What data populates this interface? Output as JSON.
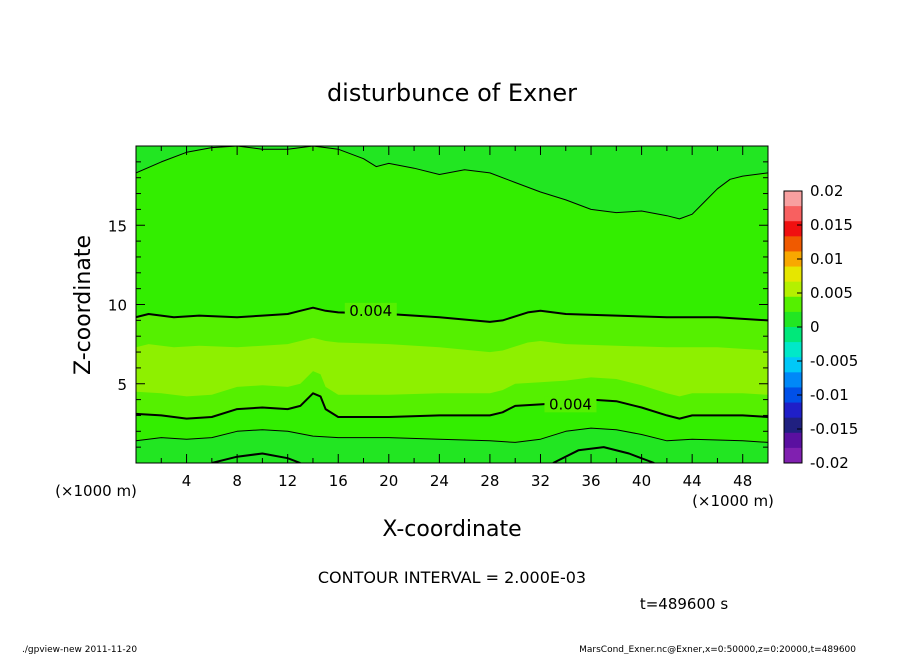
{
  "chart_data": {
    "type": "contour",
    "title": "disturbunce of Exner",
    "xlabel": "X-coordinate",
    "ylabel": "Z-coordinate",
    "x_unit_left": "(×1000 m)",
    "x_unit_right": "(×1000 m)",
    "xlim": [
      0,
      50
    ],
    "ylim": [
      0,
      20
    ],
    "x_ticks": [
      4,
      8,
      12,
      16,
      20,
      24,
      28,
      32,
      36,
      40,
      44,
      48
    ],
    "y_ticks": [
      5,
      10,
      15
    ],
    "contour_interval_text": "CONTOUR INTERVAL = 2.000E-03",
    "time_text": "t=489600 s",
    "contour_labels": [
      {
        "text": "0.004",
        "x": 16.2,
        "z": 9.6
      },
      {
        "text": "0.004",
        "x": 32.0,
        "z": 3.7
      }
    ],
    "colorbar": {
      "min": -0.02,
      "max": 0.02,
      "tick_labels": [
        "0.02",
        "0.015",
        "0.01",
        "0.005",
        "0",
        "-0.005",
        "-0.01",
        "-0.015",
        "-0.02"
      ],
      "tick_values": [
        0.02,
        0.015,
        0.01,
        0.005,
        0,
        -0.005,
        -0.01,
        -0.015,
        -0.02
      ],
      "colors": [
        "#f8a0a0",
        "#f86060",
        "#f01010",
        "#f05a00",
        "#f8a800",
        "#e6e600",
        "#b4f000",
        "#55f000",
        "#22e622",
        "#00e87a",
        "#00e8c8",
        "#00c8f8",
        "#0088f8",
        "#0050e8",
        "#1f1fc8",
        "#202080",
        "#5a10a0",
        "#8020b0"
      ]
    },
    "band_colors": {
      "band_0.006_0.008": "#8ef000",
      "band_0.004_0.006": "#55f000",
      "band_0.002_0.004": "#33ee00",
      "band_0_0.002": "#22e622"
    },
    "contour_lines": [
      {
        "level": 0.002,
        "width": 1,
        "points": [
          [
            0,
            18.3
          ],
          [
            2,
            19.0
          ],
          [
            4,
            19.6
          ],
          [
            6,
            19.9
          ],
          [
            8,
            20.0
          ],
          [
            10,
            19.8
          ],
          [
            12,
            19.8
          ],
          [
            14,
            20.0
          ],
          [
            16,
            19.8
          ],
          [
            18,
            19.2
          ],
          [
            19,
            18.7
          ],
          [
            20,
            18.9
          ],
          [
            22,
            18.6
          ],
          [
            24,
            18.2
          ],
          [
            26,
            18.5
          ],
          [
            28,
            18.3
          ],
          [
            30,
            17.7
          ],
          [
            32,
            17.1
          ],
          [
            34,
            16.6
          ],
          [
            36,
            16.0
          ],
          [
            38,
            15.8
          ],
          [
            40,
            15.9
          ],
          [
            42,
            15.6
          ],
          [
            43,
            15.4
          ],
          [
            44,
            15.7
          ],
          [
            45,
            16.5
          ],
          [
            46,
            17.3
          ],
          [
            47,
            17.9
          ],
          [
            48,
            18.1
          ],
          [
            50,
            18.3
          ]
        ]
      },
      {
        "level": 0.004,
        "width": 2,
        "points": [
          [
            0,
            9.2
          ],
          [
            1,
            9.4
          ],
          [
            3,
            9.2
          ],
          [
            5,
            9.3
          ],
          [
            8,
            9.2
          ],
          [
            10,
            9.3
          ],
          [
            12,
            9.4
          ],
          [
            13,
            9.6
          ],
          [
            14,
            9.8
          ],
          [
            15,
            9.6
          ],
          [
            16,
            9.5
          ],
          [
            20,
            9.4
          ],
          [
            24,
            9.2
          ],
          [
            28,
            8.9
          ],
          [
            29,
            9.0
          ],
          [
            31,
            9.5
          ],
          [
            32,
            9.6
          ],
          [
            34,
            9.4
          ],
          [
            38,
            9.3
          ],
          [
            42,
            9.2
          ],
          [
            46,
            9.2
          ],
          [
            50,
            9.0
          ]
        ]
      },
      {
        "level": 0.004,
        "width": 2,
        "points": [
          [
            0,
            3.1
          ],
          [
            2,
            3.0
          ],
          [
            4,
            2.8
          ],
          [
            6,
            2.9
          ],
          [
            8,
            3.4
          ],
          [
            10,
            3.5
          ],
          [
            12,
            3.4
          ],
          [
            13,
            3.6
          ],
          [
            14,
            4.4
          ],
          [
            14.6,
            4.2
          ],
          [
            15,
            3.4
          ],
          [
            16,
            2.9
          ],
          [
            20,
            2.9
          ],
          [
            24,
            3.0
          ],
          [
            28,
            3.0
          ],
          [
            29,
            3.2
          ],
          [
            30,
            3.6
          ],
          [
            32,
            3.7
          ],
          [
            34,
            3.8
          ],
          [
            36,
            4.0
          ],
          [
            38,
            3.9
          ],
          [
            40,
            3.5
          ],
          [
            42,
            3.0
          ],
          [
            43,
            2.8
          ],
          [
            44,
            3.0
          ],
          [
            46,
            3.0
          ],
          [
            48,
            3.0
          ],
          [
            50,
            2.9
          ]
        ]
      },
      {
        "level": 0.002,
        "width": 1,
        "points": [
          [
            0,
            1.4
          ],
          [
            2,
            1.6
          ],
          [
            4,
            1.5
          ],
          [
            6,
            1.6
          ],
          [
            8,
            2.0
          ],
          [
            10,
            2.1
          ],
          [
            12,
            2.0
          ],
          [
            14,
            1.7
          ],
          [
            16,
            1.6
          ],
          [
            20,
            1.6
          ],
          [
            24,
            1.5
          ],
          [
            28,
            1.4
          ],
          [
            30,
            1.3
          ],
          [
            32,
            1.5
          ],
          [
            34,
            2.0
          ],
          [
            36,
            2.2
          ],
          [
            38,
            2.1
          ],
          [
            40,
            1.8
          ],
          [
            42,
            1.4
          ],
          [
            44,
            1.5
          ],
          [
            48,
            1.4
          ],
          [
            50,
            1.3
          ]
        ]
      },
      {
        "level": 0.0,
        "width": 2,
        "points": [
          [
            6,
            0.0
          ],
          [
            8,
            0.4
          ],
          [
            10,
            0.6
          ],
          [
            12,
            0.3
          ],
          [
            13,
            0.0
          ]
        ]
      },
      {
        "level": 0.0,
        "width": 2,
        "points": [
          [
            33,
            0.0
          ],
          [
            35,
            0.8
          ],
          [
            37,
            1.0
          ],
          [
            39,
            0.6
          ],
          [
            41,
            0.0
          ]
        ]
      }
    ]
  },
  "footer": {
    "left": "./gpview-new   2011-11-20",
    "right": "MarsCond_Exner.nc@Exner,x=0:50000,z=0:20000,t=489600"
  }
}
